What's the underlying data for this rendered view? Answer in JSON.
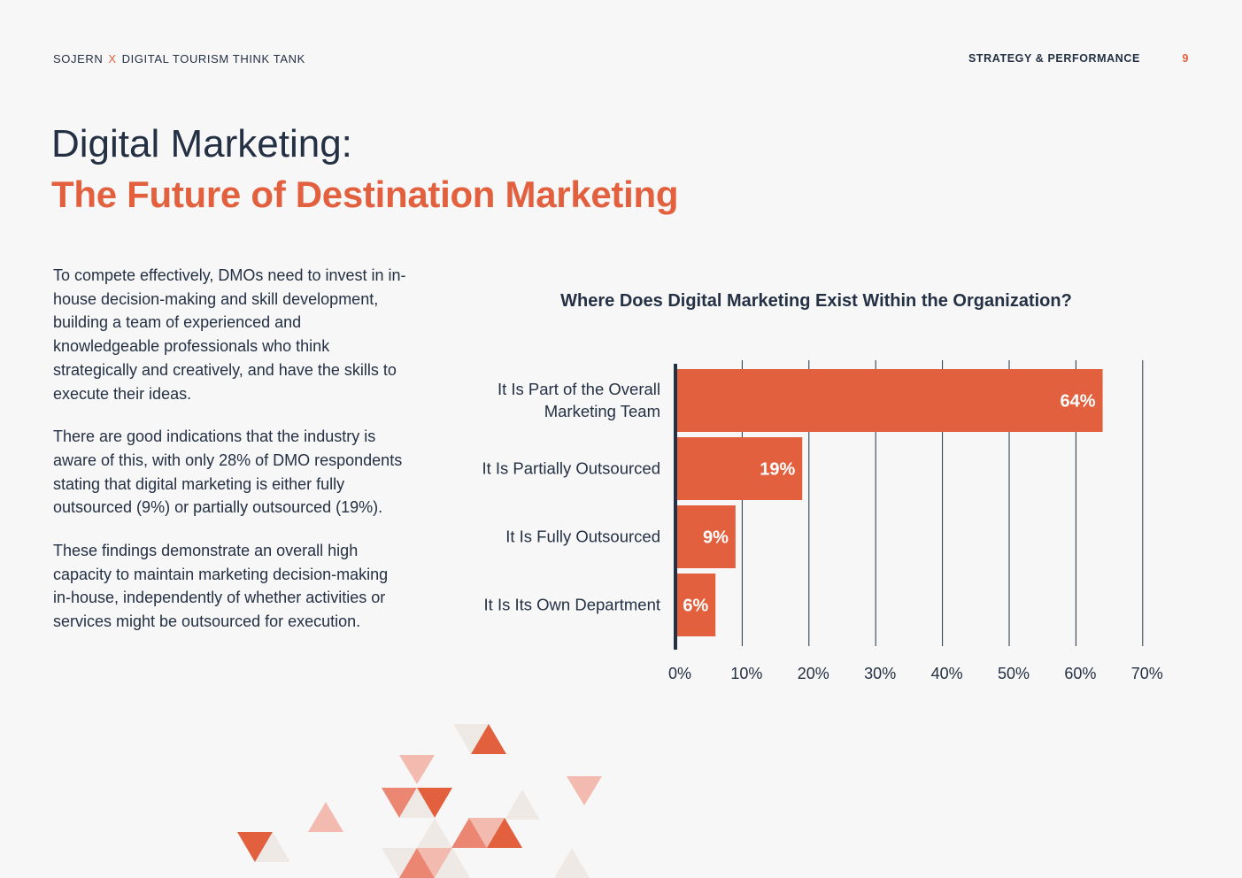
{
  "header": {
    "brand_left": "SOJERN",
    "brand_x": "X",
    "brand_right": "DIGITAL TOURISM THINK TANK",
    "section": "STRATEGY & PERFORMANCE",
    "page_number": "9"
  },
  "title": {
    "line1": "Digital Marketing:",
    "line2": "The Future of Destination Marketing"
  },
  "body": {
    "p1": "To compete effectively, DMOs need to invest in in-house decision-making and skill development, building a team of experienced and knowledgeable professionals who think strategically and creatively, and have the skills to execute their ideas.",
    "p2": "There are good indications that the industry is aware of this, with only 28% of DMO respondents stating that digital marketing is either fully outsourced (9%) or partially outsourced (19%).",
    "p3": "These findings demonstrate an overall high capacity to maintain marketing decision-making in-house, independently of whether activities or services might be outsourced for execution."
  },
  "colors": {
    "accent": "#e2603d",
    "navy": "#243043",
    "background": "#f7f7f7"
  },
  "chart_data": {
    "type": "bar",
    "orientation": "horizontal",
    "title": "Where Does Digital Marketing Exist Within the Organization?",
    "categories": [
      [
        "It Is Part of the Overall",
        "Marketing Team"
      ],
      [
        "It Is Partially Outsourced"
      ],
      [
        "It Is Fully Outsourced"
      ],
      [
        "It Is Its Own Department"
      ]
    ],
    "values": [
      64,
      19,
      9,
      6
    ],
    "data_labels": [
      "64%",
      "19%",
      "9%",
      "6%"
    ],
    "xlim": [
      0,
      70
    ],
    "ticks": [
      0,
      10,
      20,
      30,
      40,
      50,
      60,
      70
    ],
    "tick_labels": [
      "0%",
      "10%",
      "20%",
      "30%",
      "40%",
      "50%",
      "60%",
      "70%"
    ],
    "grid": true,
    "bar_color": "#e2603d"
  }
}
